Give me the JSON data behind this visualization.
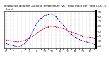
{
  "title": "Milwaukee Weather Outdoor Temperature (vs) THSW Index per Hour (Last 24 Hours)",
  "hours": [
    0,
    1,
    2,
    3,
    4,
    5,
    6,
    7,
    8,
    9,
    10,
    11,
    12,
    13,
    14,
    15,
    16,
    17,
    18,
    19,
    20,
    21,
    22,
    23
  ],
  "temp": [
    32,
    30,
    29,
    28,
    29,
    32,
    36,
    40,
    46,
    52,
    56,
    59,
    60,
    59,
    57,
    55,
    52,
    49,
    46,
    43,
    40,
    38,
    37,
    36
  ],
  "thsw": [
    25,
    22,
    20,
    18,
    20,
    26,
    36,
    50,
    66,
    76,
    82,
    84,
    86,
    80,
    70,
    62,
    52,
    44,
    38,
    34,
    30,
    28,
    26,
    24
  ],
  "temp_color": "#cc0000",
  "thsw_color": "#0000cc",
  "background_color": "#ffffff",
  "plot_bg_color": "#ffffff",
  "grid_color": "#888888",
  "ylim": [
    15,
    92
  ],
  "ytick_labels": [
    "20",
    "30",
    "40",
    "50",
    "60",
    "70",
    "80",
    "90"
  ],
  "ytick_values": [
    20,
    30,
    40,
    50,
    60,
    70,
    80,
    90
  ],
  "title_fontsize": 2.8,
  "tick_fontsize": 2.8,
  "linewidth": 0.6,
  "markersize": 0.8
}
